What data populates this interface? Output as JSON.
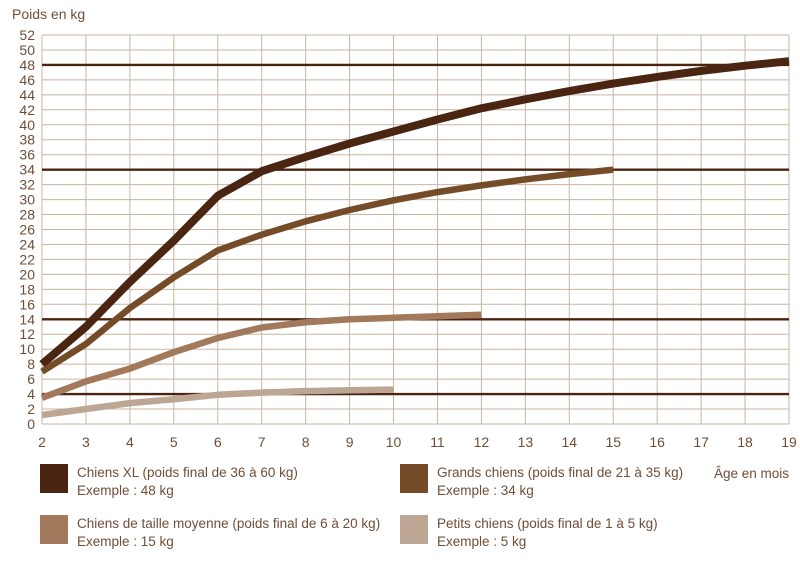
{
  "title": "Poids en kg",
  "colors": {
    "text": "#6f4e36",
    "grid": "#c8b5a3",
    "reference_line": "#4a2411",
    "xl": "#4a2512",
    "grands": "#754c28",
    "moyenne": "#a3795c",
    "petits": "#bda794"
  },
  "chart_data": {
    "type": "line",
    "title": "",
    "xlabel": "Âge en mois",
    "ylabel": "Poids en kg",
    "xlim": [
      2,
      19
    ],
    "ylim": [
      0,
      52
    ],
    "x_ticks": [
      2,
      3,
      4,
      5,
      6,
      7,
      8,
      9,
      10,
      11,
      12,
      13,
      14,
      15,
      16,
      17,
      18,
      19
    ],
    "y_tick_step": 2,
    "grid": true,
    "legend_position": "bottom",
    "reference_lines": [
      48,
      34,
      14,
      4
    ],
    "series": [
      {
        "name": "Chiens XL",
        "color": "#4a2512",
        "width": 8,
        "x": [
          2,
          3,
          4,
          5,
          6,
          7,
          8,
          9,
          10,
          11,
          12,
          13,
          14,
          15,
          16,
          17,
          18,
          19
        ],
        "values": [
          8,
          13,
          19,
          24.5,
          30.5,
          33.8,
          35.7,
          37.5,
          39.1,
          40.7,
          42.2,
          43.4,
          44.5,
          45.5,
          46.4,
          47.2,
          47.9,
          48.5
        ]
      },
      {
        "name": "Grands chiens",
        "color": "#754c28",
        "width": 6.5,
        "x": [
          2,
          3,
          4,
          5,
          6,
          7,
          8,
          9,
          10,
          11,
          12,
          13,
          14,
          15
        ],
        "values": [
          7,
          10.7,
          15.5,
          19.6,
          23.2,
          25.3,
          27.1,
          28.6,
          29.9,
          31,
          31.9,
          32.7,
          33.4,
          34
        ]
      },
      {
        "name": "Chiens de taille moyenne",
        "color": "#a3795c",
        "width": 6.5,
        "x": [
          2,
          3,
          4,
          5,
          6,
          7,
          8,
          9,
          10,
          11,
          12
        ],
        "values": [
          3.5,
          5.7,
          7.4,
          9.6,
          11.5,
          12.9,
          13.6,
          14,
          14.2,
          14.4,
          14.6
        ]
      },
      {
        "name": "Petits chiens",
        "color": "#bda794",
        "width": 6.5,
        "x": [
          2,
          3,
          4,
          5,
          6,
          7,
          8,
          9,
          10
        ],
        "values": [
          1.2,
          2,
          2.8,
          3.3,
          3.9,
          4.2,
          4.4,
          4.5,
          4.6
        ]
      }
    ]
  },
  "legend": [
    {
      "label": "Chiens XL (poids final de 36 à 60 kg)",
      "example": "Exemple : 48 kg",
      "color": "#4a2512"
    },
    {
      "label": "Grands chiens (poids final de 21 à 35 kg)",
      "example": "Exemple : 34 kg",
      "color": "#754c28"
    },
    {
      "label": "Chiens de taille moyenne (poids final de 6 à 20 kg)",
      "example": "Exemple : 15 kg",
      "color": "#a3795c"
    },
    {
      "label": "Petits chiens (poids final de 1 à 5 kg)",
      "example": "Exemple : 5 kg",
      "color": "#bda794"
    }
  ]
}
